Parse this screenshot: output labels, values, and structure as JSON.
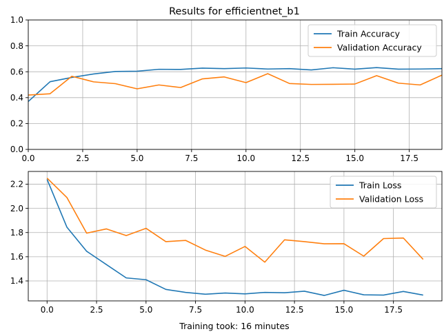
{
  "figure": {
    "title": "Results for efficientnet_b1",
    "footer": "Training took: 16 minutes"
  },
  "chart_data": [
    {
      "type": "line",
      "title": "Results for efficientnet_b1",
      "xlim": [
        0,
        19
      ],
      "ylim": [
        0,
        1.0
      ],
      "xticks": [
        0,
        2.5,
        5,
        7.5,
        10,
        12.5,
        15,
        17.5
      ],
      "xtick_labels": [
        "0.0",
        "2.5",
        "5.0",
        "7.5",
        "10.0",
        "12.5",
        "15.0",
        "17.5"
      ],
      "yticks": [
        0,
        0.2,
        0.4,
        0.6,
        0.8,
        1.0
      ],
      "ytick_labels": [
        "0.0",
        "0.2",
        "0.4",
        "0.6",
        "0.8",
        "1.0"
      ],
      "grid": true,
      "legend_position": "top-right",
      "x": [
        0,
        1,
        2,
        3,
        4,
        5,
        6,
        7,
        8,
        9,
        10,
        11,
        12,
        13,
        14,
        15,
        16,
        17,
        18,
        19
      ],
      "series": [
        {
          "name": "Train Accuracy",
          "color": "#1f77b4",
          "values": [
            0.37,
            0.523,
            0.556,
            0.583,
            0.602,
            0.604,
            0.619,
            0.618,
            0.628,
            0.624,
            0.629,
            0.621,
            0.624,
            0.614,
            0.631,
            0.62,
            0.632,
            0.62,
            0.621,
            0.624
          ]
        },
        {
          "name": "Validation Accuracy",
          "color": "#ff7f0e",
          "values": [
            0.42,
            0.43,
            0.565,
            0.522,
            0.508,
            0.468,
            0.498,
            0.478,
            0.545,
            0.56,
            0.516,
            0.585,
            0.509,
            0.502,
            0.503,
            0.505,
            0.57,
            0.512,
            0.498,
            0.574
          ]
        }
      ]
    },
    {
      "type": "line",
      "xlabel": "Training took: 16 minutes",
      "xlim": [
        -0.95,
        19.95
      ],
      "ylim": [
        1.235,
        2.305
      ],
      "xticks": [
        0,
        2.5,
        5,
        7.5,
        10,
        12.5,
        15,
        17.5
      ],
      "xtick_labels": [
        "0.0",
        "2.5",
        "5.0",
        "7.5",
        "10.0",
        "12.5",
        "15.0",
        "17.5"
      ],
      "yticks": [
        1.4,
        1.6,
        1.8,
        2.0,
        2.2
      ],
      "ytick_labels": [
        "1.4",
        "1.6",
        "1.8",
        "2.0",
        "2.2"
      ],
      "grid": true,
      "legend_position": "top-right",
      "x": [
        0,
        1,
        2,
        3,
        4,
        5,
        6,
        7,
        8,
        9,
        10,
        11,
        12,
        13,
        14,
        15,
        16,
        17,
        18,
        19
      ],
      "series": [
        {
          "name": "Train Loss",
          "color": "#1f77b4",
          "values": [
            2.24,
            1.845,
            1.645,
            1.535,
            1.425,
            1.41,
            1.33,
            1.305,
            1.29,
            1.3,
            1.293,
            1.305,
            1.302,
            1.315,
            1.28,
            1.323,
            1.285,
            1.283,
            1.313,
            1.283
          ]
        },
        {
          "name": "Validation Loss",
          "color": "#ff7f0e",
          "values": [
            2.25,
            2.09,
            1.795,
            1.83,
            1.775,
            1.835,
            1.725,
            1.735,
            1.655,
            1.603,
            1.685,
            1.555,
            1.74,
            1.725,
            1.707,
            1.708,
            1.605,
            1.75,
            1.755,
            1.578
          ]
        }
      ]
    }
  ]
}
